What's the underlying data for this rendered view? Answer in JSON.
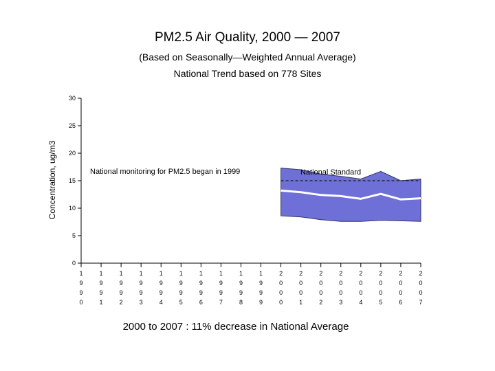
{
  "chart_data": {
    "type": "area",
    "title": "PM2.5 Air Quality, 2000 — 2007",
    "subtitle": "(Based on Seasonally—Weighted Annual Average)",
    "subtitle2": "National Trend based on 778 Sites",
    "ylabel": "Concentration, ug/m3",
    "xlabel": "",
    "footer": "2000 to 2007 :  11% decrease in National Average",
    "ylim": [
      0,
      30
    ],
    "yticks": [
      0,
      5,
      10,
      15,
      20,
      25,
      30
    ],
    "x": [
      1990,
      1991,
      1992,
      1993,
      1994,
      1995,
      1996,
      1997,
      1998,
      1999,
      2000,
      2001,
      2002,
      2003,
      2004,
      2005,
      2006,
      2007
    ],
    "x_tick_labels": [
      [
        "1",
        "9",
        "9",
        "0"
      ],
      [
        "1",
        "9",
        "9",
        "1"
      ],
      [
        "1",
        "9",
        "9",
        "2"
      ],
      [
        "1",
        "9",
        "9",
        "3"
      ],
      [
        "1",
        "9",
        "9",
        "4"
      ],
      [
        "1",
        "9",
        "9",
        "5"
      ],
      [
        "1",
        "9",
        "9",
        "6"
      ],
      [
        "1",
        "9",
        "9",
        "7"
      ],
      [
        "1",
        "9",
        "9",
        "8"
      ],
      [
        "1",
        "9",
        "9",
        "9"
      ],
      [
        "2",
        "0",
        "0",
        "0"
      ],
      [
        "2",
        "0",
        "0",
        "1"
      ],
      [
        "2",
        "0",
        "0",
        "2"
      ],
      [
        "2",
        "0",
        "0",
        "3"
      ],
      [
        "2",
        "0",
        "0",
        "4"
      ],
      [
        "2",
        "0",
        "0",
        "5"
      ],
      [
        "2",
        "0",
        "0",
        "6"
      ],
      [
        "2",
        "0",
        "0",
        "7"
      ]
    ],
    "band_x": [
      2000,
      2001,
      2002,
      2003,
      2004,
      2005,
      2006,
      2007
    ],
    "band_upper": [
      17.3,
      17.0,
      16.2,
      15.8,
      15.3,
      16.7,
      15.0,
      15.3
    ],
    "band_lower": [
      8.6,
      8.4,
      7.9,
      7.6,
      7.6,
      7.8,
      7.7,
      7.6
    ],
    "mean_values": [
      13.2,
      12.9,
      12.4,
      12.2,
      11.7,
      12.6,
      11.6,
      11.8
    ],
    "standard_value": 15,
    "standard_label": "National Standard",
    "annotation": "National monitoring for PM2.5 began in 1999",
    "grid": false,
    "colors": {
      "band": "#6f6fd8",
      "mean": "#ffffff",
      "standard": "#000000",
      "axis": "#000000"
    }
  }
}
